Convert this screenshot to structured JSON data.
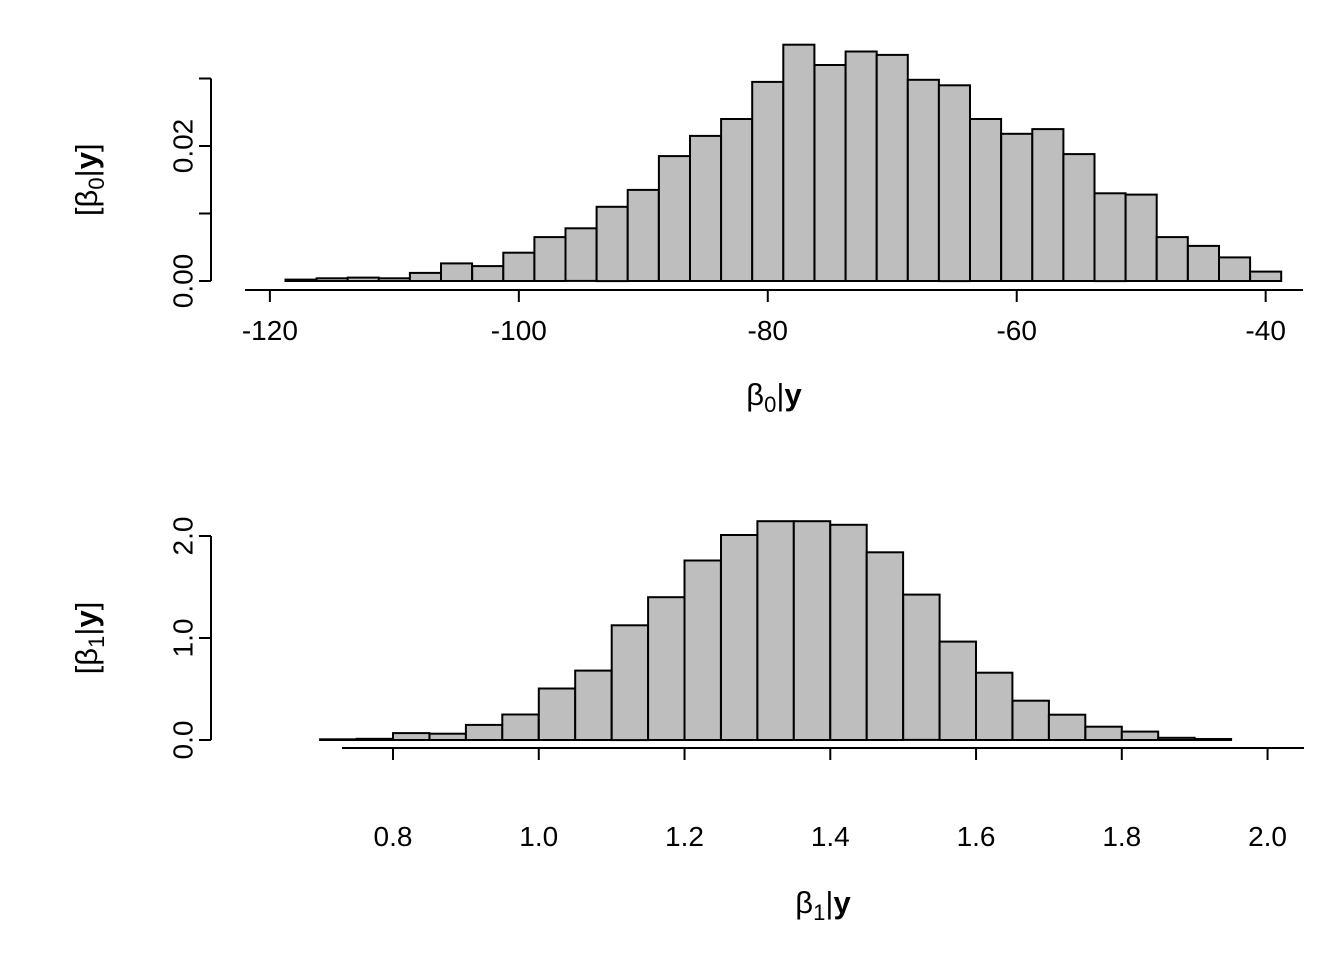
{
  "figure": {
    "background": "#ffffff",
    "axis_color": "#000000"
  },
  "chart_data": [
    {
      "type": "histogram",
      "name": "beta0-posterior",
      "title": "",
      "xlabel": {
        "symbol": "β",
        "subscript": "0",
        "separator": "|",
        "bold_var": "y"
      },
      "ylabel": {
        "bracket_open": "[",
        "symbol": "β",
        "subscript": "0",
        "separator": "|",
        "bold_var": "y",
        "bracket_close": "]"
      },
      "bins": {
        "start": -118.75,
        "width": 2.5
      },
      "densities": [
        0.0002,
        0.0004,
        0.0005,
        0.0004,
        0.0012,
        0.0026,
        0.0022,
        0.0042,
        0.0065,
        0.0078,
        0.011,
        0.0135,
        0.0185,
        0.0215,
        0.024,
        0.0295,
        0.035,
        0.032,
        0.034,
        0.0335,
        0.0298,
        0.029,
        0.024,
        0.0218,
        0.0225,
        0.0188,
        0.013,
        0.0128,
        0.0065,
        0.0052,
        0.0035,
        0.0014
      ],
      "xlim": [
        -122,
        -37
      ],
      "ylim": [
        0,
        0.0355
      ],
      "x_ticks": [
        {
          "value": -120,
          "label": "-120"
        },
        {
          "value": -100,
          "label": "-100"
        },
        {
          "value": -80,
          "label": "-80"
        },
        {
          "value": -60,
          "label": "-60"
        },
        {
          "value": -40,
          "label": "-40"
        }
      ],
      "y_ticks": [
        {
          "value": 0,
          "label": "0.00"
        },
        {
          "value": 0.01,
          "label": ""
        },
        {
          "value": 0.02,
          "label": "0.02"
        },
        {
          "value": 0.03,
          "label": ""
        }
      ],
      "bar_fill": "#bebebe",
      "bar_stroke": "#000000",
      "axis_color": "#000000",
      "grid": false,
      "legend": false
    },
    {
      "type": "histogram",
      "name": "beta1-posterior",
      "title": "",
      "xlabel": {
        "symbol": "β",
        "subscript": "1",
        "separator": "|",
        "bold_var": "y"
      },
      "ylabel": {
        "bracket_open": "[",
        "symbol": "β",
        "subscript": "1",
        "separator": "|",
        "bold_var": "y",
        "bracket_close": "]"
      },
      "bins": {
        "start": 0.7,
        "width": 0.05
      },
      "densities": [
        0.005,
        0.012,
        0.068,
        0.062,
        0.148,
        0.25,
        0.505,
        0.68,
        1.125,
        1.4,
        1.76,
        2.01,
        2.145,
        2.145,
        2.11,
        1.84,
        1.425,
        0.965,
        0.66,
        0.385,
        0.248,
        0.13,
        0.082,
        0.022,
        0.01
      ],
      "xlim": [
        0.73,
        2.05
      ],
      "ylim": [
        0,
        2.2
      ],
      "x_ticks": [
        {
          "value": 0.8,
          "label": "0.8"
        },
        {
          "value": 1.0,
          "label": "1.0"
        },
        {
          "value": 1.2,
          "label": "1.2"
        },
        {
          "value": 1.4,
          "label": "1.4"
        },
        {
          "value": 1.6,
          "label": "1.6"
        },
        {
          "value": 1.8,
          "label": "1.8"
        },
        {
          "value": 2.0,
          "label": "2.0"
        }
      ],
      "y_ticks": [
        {
          "value": 0,
          "label": "0.0"
        },
        {
          "value": 1,
          "label": "1.0"
        },
        {
          "value": 2,
          "label": "2.0"
        }
      ],
      "bar_fill": "#bebebe",
      "bar_stroke": "#000000",
      "axis_color": "#000000",
      "grid": false,
      "legend": false
    }
  ]
}
